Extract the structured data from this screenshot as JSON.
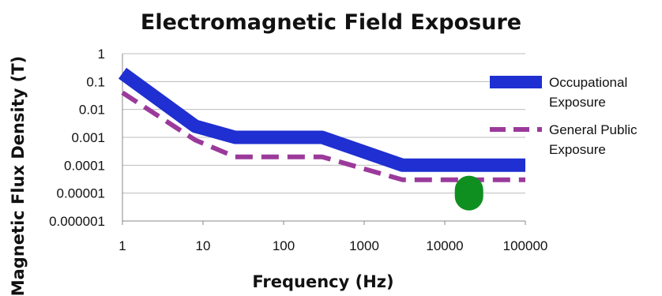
{
  "chart_data": {
    "type": "line",
    "title": "Electromagnetic Field Exposure",
    "xlabel": "Frequency (Hz)",
    "ylabel": "Magnetic Flux Density (T)",
    "x_scale": "log",
    "y_scale": "log",
    "xlim": [
      1,
      100000
    ],
    "ylim": [
      1e-06,
      1
    ],
    "x_ticks": [
      "1",
      "10",
      "100",
      "1000",
      "10000",
      "100000"
    ],
    "y_ticks": [
      "1",
      "0.1",
      "0.01",
      "0.001",
      "0.0001",
      "0.00001",
      "0.000001"
    ],
    "grid": true,
    "legend_position": "right",
    "series": [
      {
        "name": "Occupational Exposure",
        "style": "solid",
        "color": "#1f2fd1",
        "points": [
          [
            1,
            0.2
          ],
          [
            8,
            0.0025
          ],
          [
            25,
            0.001
          ],
          [
            300,
            0.001
          ],
          [
            3000,
            0.0001
          ],
          [
            100000,
            0.0001
          ]
        ]
      },
      {
        "name": "General Public Exposure",
        "style": "dashed",
        "color": "#9b3a9b",
        "points": [
          [
            1,
            0.04
          ],
          [
            8,
            0.0008
          ],
          [
            25,
            0.0002
          ],
          [
            300,
            0.0002
          ],
          [
            3000,
            3e-05
          ],
          [
            100000,
            3e-05
          ]
        ]
      }
    ],
    "markers": [
      {
        "x": 20000,
        "y": 1e-05,
        "color": "#0f8f1f"
      }
    ]
  }
}
